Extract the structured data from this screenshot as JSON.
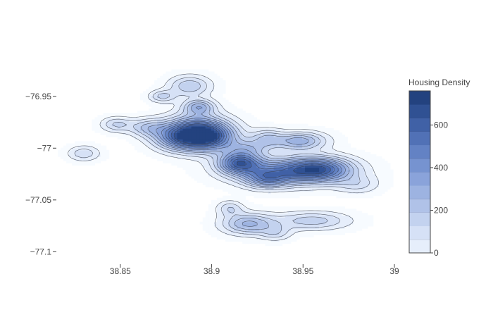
{
  "chart_data": {
    "type": "heatmap",
    "subtype": "density-contour",
    "x": {
      "range": [
        38.815,
        39.0
      ],
      "ticks": [
        38.85,
        38.9,
        38.95,
        39
      ],
      "tick_labels": [
        "38.85",
        "38.9",
        "38.95",
        "39"
      ]
    },
    "y": {
      "range": [
        -77.112,
        -76.925
      ],
      "ticks": [
        -76.95,
        -77,
        -77.05,
        -77.1
      ],
      "tick_labels": [
        "−76.95",
        "−77",
        "−77.05",
        "−77.1"
      ]
    },
    "colorbar": {
      "title": "Housing Density",
      "range": [
        0,
        760
      ],
      "ticks": [
        0,
        200,
        400,
        600
      ],
      "tick_labels": [
        "0",
        "200",
        "400",
        "600"
      ],
      "levels": [
        0,
        63.3,
        126.7,
        190,
        253.3,
        316.7,
        380,
        443.3,
        506.7,
        570,
        633.3,
        696.7,
        760
      ],
      "colors": [
        "#f7fbff",
        "#e6eefb",
        "#d6e1f6",
        "#c3d2ef",
        "#b0c2e8",
        "#9db3e1",
        "#8aa3da",
        "#7693d0",
        "#6382c4",
        "#5171b6",
        "#4061a6",
        "#305193",
        "#23427f"
      ]
    },
    "grid": false,
    "clusters": [
      {
        "x": 38.892,
        "y": -76.985,
        "peak": 720,
        "sx": 0.012,
        "sy": 0.011
      },
      {
        "x": 38.915,
        "y": -77.014,
        "peak": 560,
        "sx": 0.008,
        "sy": 0.007
      },
      {
        "x": 38.942,
        "y": -77.022,
        "peak": 500,
        "sx": 0.02,
        "sy": 0.009
      },
      {
        "x": 38.96,
        "y": -77.02,
        "peak": 420,
        "sx": 0.012,
        "sy": 0.008
      },
      {
        "x": 38.93,
        "y": -77.03,
        "peak": 300,
        "sx": 0.008,
        "sy": 0.006
      },
      {
        "x": 38.948,
        "y": -76.993,
        "peak": 360,
        "sx": 0.01,
        "sy": 0.006
      },
      {
        "x": 38.92,
        "y": -77.073,
        "peak": 330,
        "sx": 0.01,
        "sy": 0.007
      },
      {
        "x": 38.91,
        "y": -77.058,
        "peak": 180,
        "sx": 0.005,
        "sy": 0.005
      },
      {
        "x": 38.955,
        "y": -77.07,
        "peak": 230,
        "sx": 0.014,
        "sy": 0.006
      },
      {
        "x": 38.893,
        "y": -76.96,
        "peak": 330,
        "sx": 0.006,
        "sy": 0.005
      },
      {
        "x": 38.888,
        "y": -76.94,
        "peak": 250,
        "sx": 0.008,
        "sy": 0.007
      },
      {
        "x": 38.865,
        "y": -76.98,
        "peak": 230,
        "sx": 0.007,
        "sy": 0.006
      },
      {
        "x": 38.848,
        "y": -76.977,
        "peak": 200,
        "sx": 0.006,
        "sy": 0.005
      },
      {
        "x": 38.83,
        "y": -77.005,
        "peak": 180,
        "sx": 0.006,
        "sy": 0.005
      },
      {
        "x": 38.873,
        "y": -76.95,
        "peak": 210,
        "sx": 0.005,
        "sy": 0.004
      },
      {
        "x": 38.93,
        "y": -76.99,
        "peak": 200,
        "sx": 0.006,
        "sy": 0.006
      },
      {
        "x": 38.92,
        "y": -77.0,
        "peak": 220,
        "sx": 0.008,
        "sy": 0.006
      },
      {
        "x": 38.98,
        "y": -77.035,
        "peak": 140,
        "sx": 0.008,
        "sy": 0.006
      },
      {
        "x": 38.935,
        "y": -77.082,
        "peak": 150,
        "sx": 0.006,
        "sy": 0.005
      },
      {
        "x": 38.88,
        "y": -76.99,
        "peak": 260,
        "sx": 0.009,
        "sy": 0.008
      },
      {
        "x": 38.9,
        "y": -76.99,
        "peak": 300,
        "sx": 0.01,
        "sy": 0.009
      }
    ]
  }
}
